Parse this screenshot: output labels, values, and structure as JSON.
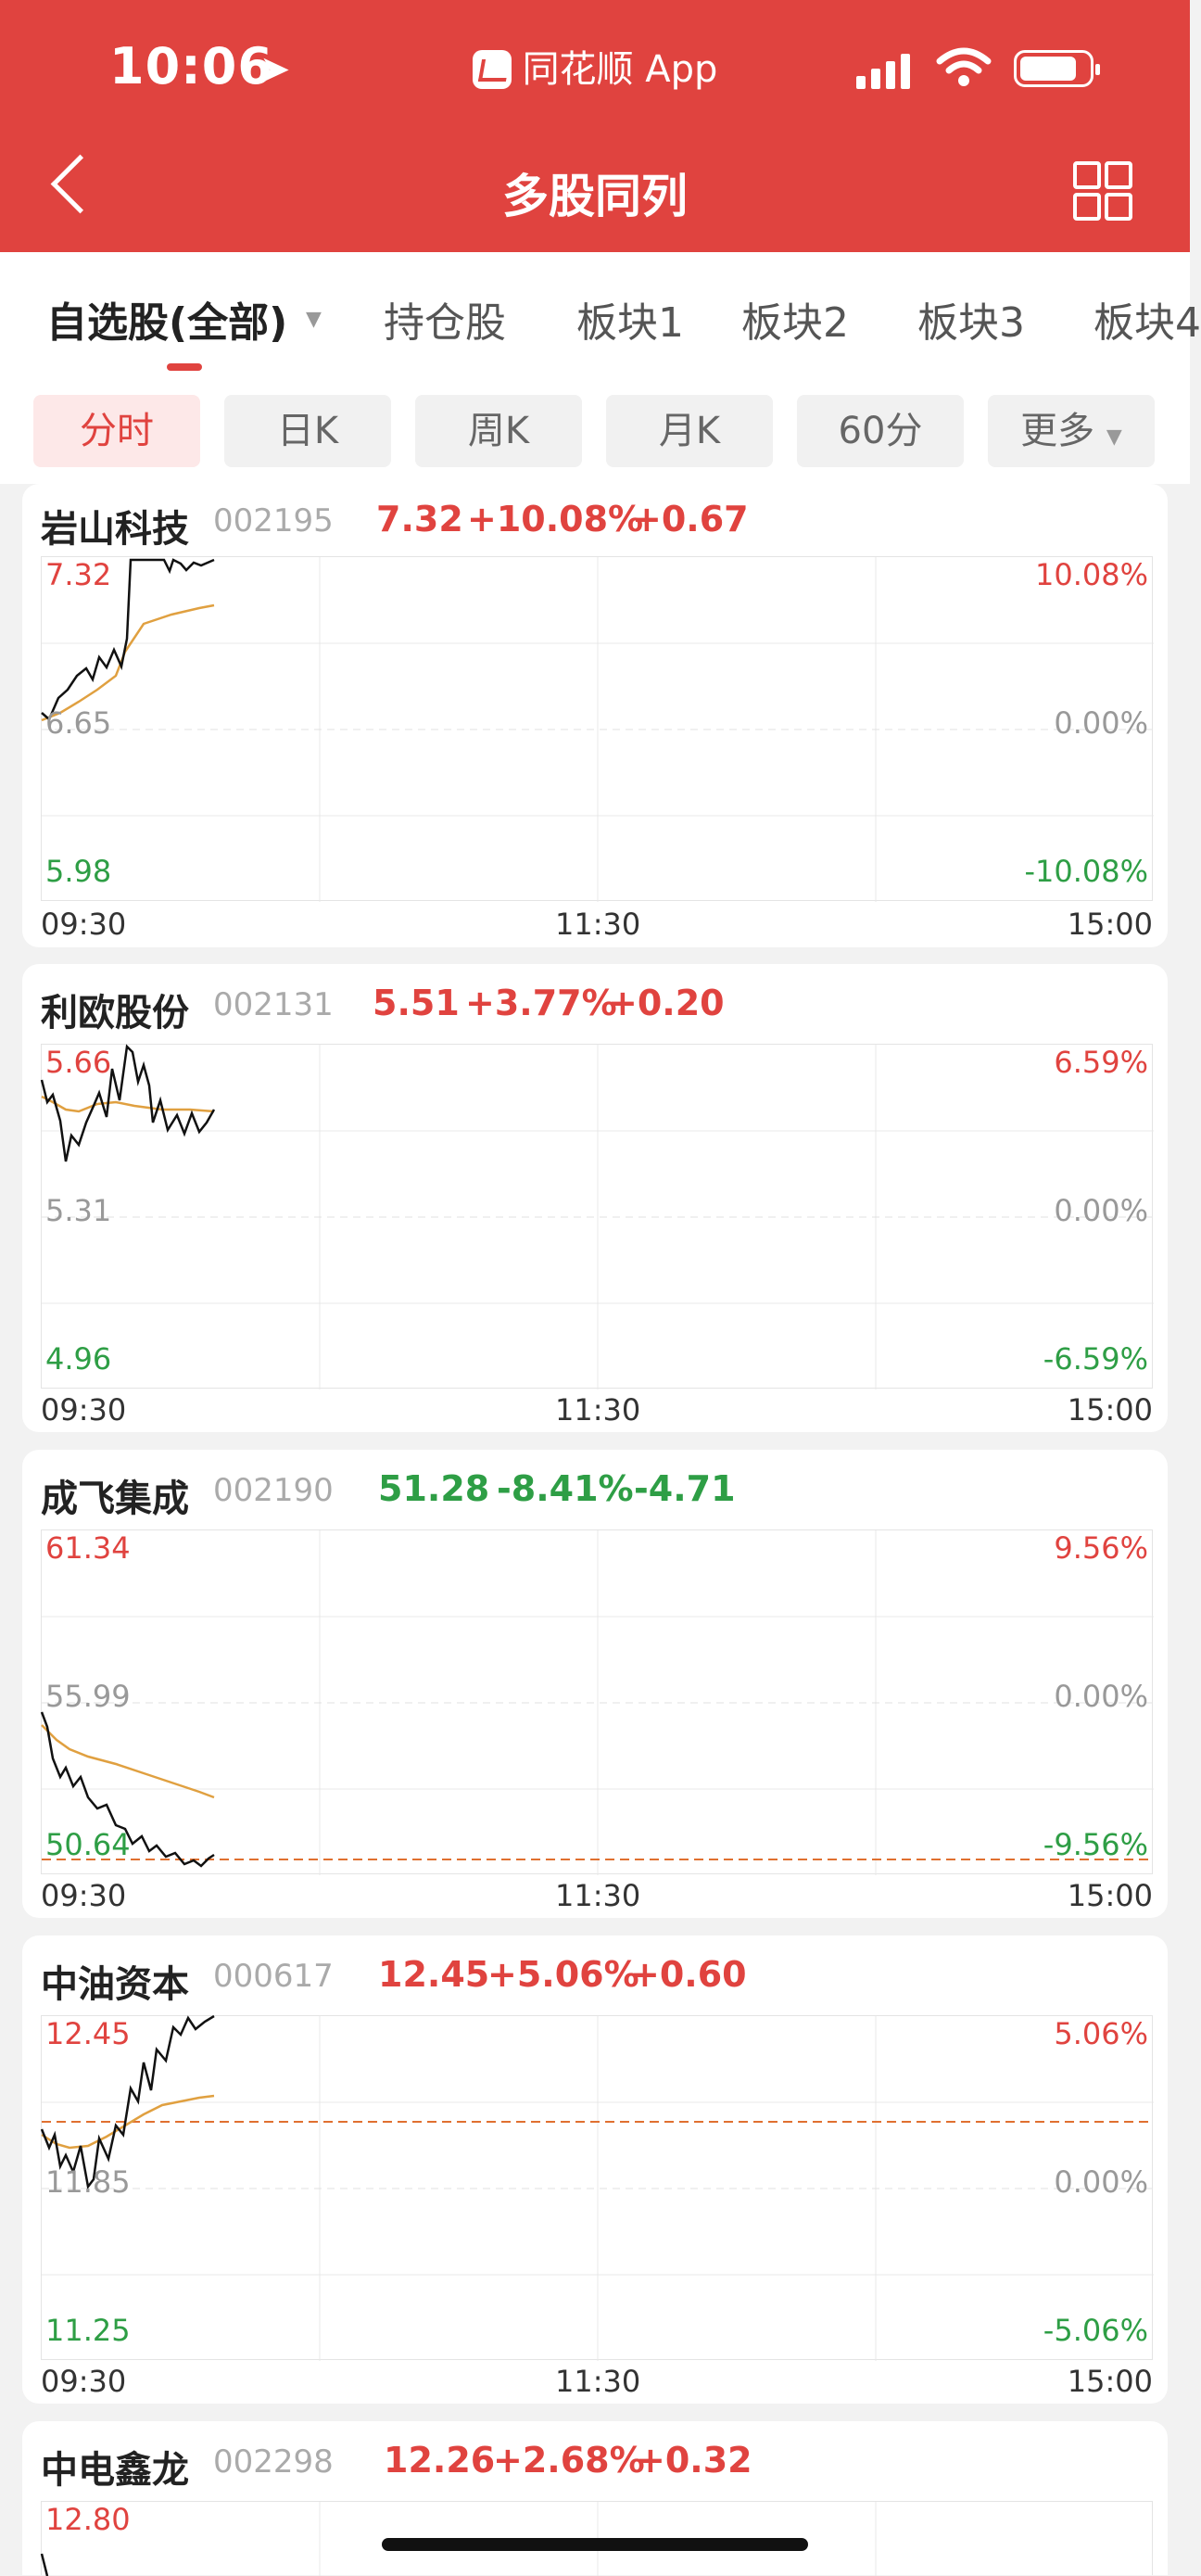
{
  "status": {
    "time": "10:06",
    "app": "同花顺 App"
  },
  "nav": {
    "title": "多股同列"
  },
  "tabs": [
    "自选股(全部)",
    "持仓股",
    "板块1",
    "板块2",
    "板块3",
    "板块4"
  ],
  "periods": [
    "分时",
    "日K",
    "周K",
    "月K",
    "60分",
    "更多"
  ],
  "stocks": [
    {
      "name": "岩山科技",
      "code": "002195",
      "price": "7.32",
      "pct": "+10.08%",
      "chg": "+0.67",
      "top": "7.32",
      "mid": "6.65",
      "bot": "5.98",
      "rtop": "10.08%",
      "rmid": "0.00%",
      "rbot": "-10.08%",
      "t1": "09:30",
      "t2": "11:30",
      "t3": "15:00"
    },
    {
      "name": "利欧股份",
      "code": "002131",
      "price": "5.51",
      "pct": "+3.77%",
      "chg": "+0.20",
      "top": "5.66",
      "mid": "5.31",
      "bot": "4.96",
      "rtop": "6.59%",
      "rmid": "0.00%",
      "rbot": "-6.59%",
      "t1": "09:30",
      "t2": "11:30",
      "t3": "15:00"
    },
    {
      "name": "成飞集成",
      "code": "002190",
      "price": "51.28",
      "pct": "-8.41%",
      "chg": "-4.71",
      "top": "61.34",
      "mid": "55.99",
      "bot": "50.64",
      "rtop": "9.56%",
      "rmid": "0.00%",
      "rbot": "-9.56%",
      "t1": "09:30",
      "t2": "11:30",
      "t3": "15:00"
    },
    {
      "name": "中油资本",
      "code": "000617",
      "price": "12.45",
      "pct": "+5.06%",
      "chg": "+0.60",
      "top": "12.45",
      "mid": "11.85",
      "bot": "11.25",
      "rtop": "5.06%",
      "rmid": "0.00%",
      "rbot": "-5.06%",
      "t1": "09:30",
      "t2": "11:30",
      "t3": "15:00"
    },
    {
      "name": "中电鑫龙",
      "code": "002298",
      "price": "12.26",
      "pct": "+2.68%",
      "chg": "+0.32",
      "top": "12.80"
    }
  ],
  "colors": {
    "up": "#e0433f",
    "down": "#2e9e45",
    "header": "#e0433f",
    "avg": "#e0a040"
  }
}
